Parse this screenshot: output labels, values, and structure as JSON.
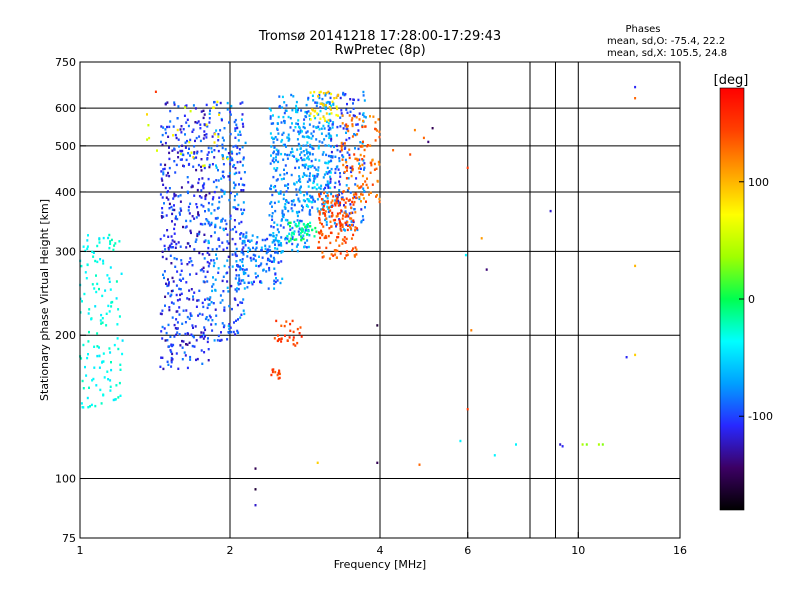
{
  "chart_data": {
    "type": "scatter",
    "title": "Tromsø 20141218 17:28:00-17:29:43",
    "subtitle": "RwPretec (8p)",
    "xlabel": "Frequency [MHz]",
    "ylabel": "Stationary phase Virtual Height [km]",
    "x_scale": "log",
    "y_scale": "log",
    "xlim": [
      1,
      16
    ],
    "ylim": [
      75,
      750
    ],
    "x_ticks": [
      {
        "value": 1,
        "label": "1"
      },
      {
        "value": 2,
        "label": "2"
      },
      {
        "value": 4,
        "label": "4"
      },
      {
        "value": 6,
        "label": "6"
      },
      {
        "value": 10,
        "label": "10"
      },
      {
        "value": 16,
        "label": "16"
      }
    ],
    "x_gridlines": [
      2,
      4,
      6,
      8,
      9,
      10
    ],
    "y_ticks": [
      {
        "value": 75,
        "label": "75"
      },
      {
        "value": 100,
        "label": "100"
      },
      {
        "value": 200,
        "label": "200"
      },
      {
        "value": 300,
        "label": "300"
      },
      {
        "value": 400,
        "label": "400"
      },
      {
        "value": 500,
        "label": "500"
      },
      {
        "value": 600,
        "label": "600"
      },
      {
        "value": 750,
        "label": "750"
      }
    ],
    "y_gridlines": [
      100,
      200,
      300,
      400,
      500,
      600
    ],
    "grid": true,
    "legend": {
      "title": "Phases",
      "lines": [
        "mean, sd,O: -75.4, 22.2",
        "mean, sd,X: 105.5, 24.8"
      ],
      "placement": "top-right"
    },
    "colorbar": {
      "label": "[deg]",
      "range": [
        -180,
        180
      ],
      "ticks": [
        {
          "value": 100,
          "label": "100"
        },
        {
          "value": 0,
          "label": "0"
        },
        {
          "value": -100,
          "label": "-100"
        }
      ],
      "colormap": [
        "#000000",
        "#3c0064",
        "#2828ff",
        "#00a0ff",
        "#00ffff",
        "#00ff50",
        "#a0ff00",
        "#ffff00",
        "#ffa000",
        "#ff4000",
        "#ff0000"
      ]
    },
    "clusters": [
      {
        "x": [
          1.0,
          1.22
        ],
        "y": [
          140,
          330
        ],
        "phase": [
          -45,
          -20
        ],
        "count": 140
      },
      {
        "x": [
          1.45,
          1.82
        ],
        "y": [
          170,
          620
        ],
        "phase": [
          -135,
          -80
        ],
        "count": 450
      },
      {
        "x": [
          1.8,
          2.15
        ],
        "y": [
          195,
          620
        ],
        "phase": [
          -120,
          -60
        ],
        "count": 320
      },
      {
        "x": [
          2.05,
          2.55
        ],
        "y": [
          250,
          330
        ],
        "phase": [
          -110,
          -60
        ],
        "count": 140
      },
      {
        "x": [
          2.4,
          2.9
        ],
        "y": [
          300,
          640
        ],
        "phase": [
          -100,
          -50
        ],
        "count": 330
      },
      {
        "x": [
          2.85,
          3.2
        ],
        "y": [
          360,
          640
        ],
        "phase": [
          -100,
          -40
        ],
        "count": 170
      },
      {
        "x": [
          3.1,
          3.75
        ],
        "y": [
          330,
          650
        ],
        "phase": [
          -120,
          -60
        ],
        "count": 200
      },
      {
        "x": [
          3.0,
          3.6
        ],
        "y": [
          290,
          400
        ],
        "phase": [
          120,
          160
        ],
        "count": 160
      },
      {
        "x": [
          3.35,
          4.0
        ],
        "y": [
          380,
          580
        ],
        "phase": [
          110,
          150
        ],
        "count": 110
      },
      {
        "x": [
          2.9,
          3.3
        ],
        "y": [
          560,
          650
        ],
        "phase": [
          70,
          100
        ],
        "count": 40
      },
      {
        "x": [
          2.6,
          3.0
        ],
        "y": [
          315,
          345
        ],
        "phase": [
          -30,
          10
        ],
        "count": 45
      },
      {
        "x": [
          2.45,
          2.8
        ],
        "y": [
          190,
          215
        ],
        "phase": [
          130,
          160
        ],
        "count": 30
      },
      {
        "x": [
          2.42,
          2.52
        ],
        "y": [
          162,
          170
        ],
        "phase": [
          130,
          160
        ],
        "count": 12
      },
      {
        "x": [
          1.35,
          2.0
        ],
        "y": [
          450,
          620
        ],
        "phase": [
          50,
          90
        ],
        "count": 25
      }
    ],
    "isolated_points": [
      {
        "x": 1.42,
        "y": 650,
        "phase": 150
      },
      {
        "x": 4.25,
        "y": 490,
        "phase": 130
      },
      {
        "x": 4.6,
        "y": 480,
        "phase": 140
      },
      {
        "x": 4.7,
        "y": 540,
        "phase": 120
      },
      {
        "x": 4.9,
        "y": 520,
        "phase": 130
      },
      {
        "x": 5.0,
        "y": 510,
        "phase": -140
      },
      {
        "x": 5.1,
        "y": 545,
        "phase": -150
      },
      {
        "x": 6.0,
        "y": 450,
        "phase": 150
      },
      {
        "x": 6.4,
        "y": 320,
        "phase": 110
      },
      {
        "x": 6.55,
        "y": 275,
        "phase": -140
      },
      {
        "x": 6.1,
        "y": 205,
        "phase": 120
      },
      {
        "x": 5.95,
        "y": 295,
        "phase": -40
      },
      {
        "x": 6.0,
        "y": 140,
        "phase": 150
      },
      {
        "x": 5.8,
        "y": 120,
        "phase": -40
      },
      {
        "x": 6.8,
        "y": 112,
        "phase": -40
      },
      {
        "x": 7.5,
        "y": 118,
        "phase": -40
      },
      {
        "x": 8.8,
        "y": 365,
        "phase": -120
      },
      {
        "x": 3.95,
        "y": 210,
        "phase": -160
      },
      {
        "x": 3.0,
        "y": 108,
        "phase": 90
      },
      {
        "x": 3.95,
        "y": 108,
        "phase": -150
      },
      {
        "x": 4.8,
        "y": 107,
        "phase": 130
      },
      {
        "x": 2.25,
        "y": 105,
        "phase": -150
      },
      {
        "x": 2.25,
        "y": 95,
        "phase": -160
      },
      {
        "x": 2.25,
        "y": 88,
        "phase": -120
      },
      {
        "x": 9.2,
        "y": 118,
        "phase": -120
      },
      {
        "x": 9.3,
        "y": 117,
        "phase": -110
      },
      {
        "x": 10.2,
        "y": 118,
        "phase": 40
      },
      {
        "x": 10.4,
        "y": 118,
        "phase": 30
      },
      {
        "x": 11.0,
        "y": 118,
        "phase": 40
      },
      {
        "x": 11.2,
        "y": 118,
        "phase": 30
      },
      {
        "x": 12.5,
        "y": 180,
        "phase": -110
      },
      {
        "x": 13.0,
        "y": 182,
        "phase": 90
      },
      {
        "x": 13.0,
        "y": 280,
        "phase": 100
      },
      {
        "x": 13.0,
        "y": 630,
        "phase": 130
      },
      {
        "x": 13.0,
        "y": 665,
        "phase": -110
      }
    ]
  }
}
